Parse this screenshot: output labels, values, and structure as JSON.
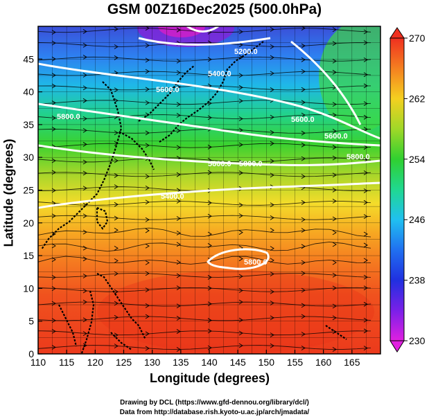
{
  "title": "GSM 00Z16Dec2025 (500.0hPa)",
  "xlabel": "Longitude (degrees)",
  "ylabel": "Latitude  (degrees)",
  "credit_line1": "Drawing by DCL (https://www.gfd-dennou.org/library/dcl/)",
  "credit_line2": "Data from http://database.rish.kyoto-u.ac.jp/arch/jmadata/",
  "map_data": {
    "lon_range": [
      110,
      170
    ],
    "lat_range": [
      0,
      50
    ],
    "x_ticks": [
      "110",
      "115",
      "120",
      "125",
      "130",
      "135",
      "140",
      "145",
      "150",
      "155",
      "160",
      "165"
    ],
    "y_ticks": [
      "0",
      "5",
      "10",
      "15",
      "20",
      "25",
      "30",
      "35",
      "40",
      "45"
    ],
    "colorbar": {
      "min": 230,
      "max": 270,
      "labels": [
        "230",
        "238",
        "246",
        "254",
        "262",
        "270"
      ]
    },
    "contour_labels": [
      "5200.0",
      "5400.0",
      "5600.0",
      "5800.0",
      "5600.0",
      "5600.0",
      "5800.0",
      "5400.0",
      "5600.0",
      "5800.0"
    ],
    "low_center_label": "5800.0",
    "colors": {
      "cold": "#cc00cc",
      "cool": "#2a7df0",
      "mid": "#2ed62e",
      "warm": "#f7a020",
      "hot": "#f04020"
    }
  }
}
